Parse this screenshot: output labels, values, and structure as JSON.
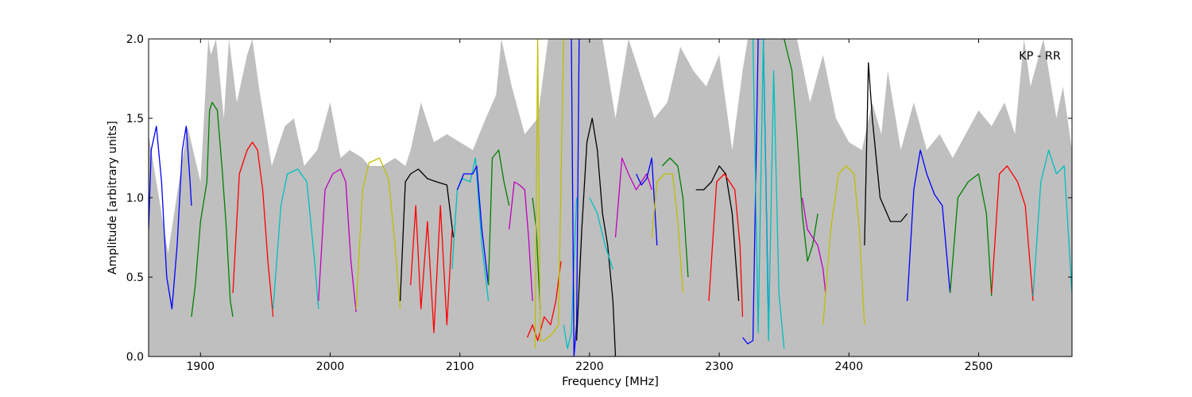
{
  "chart_data": {
    "type": "line",
    "title": "",
    "annotation": "KP - RR",
    "xlabel": "Frequency [MHz]",
    "ylabel": "Amplitude [arbitrary units]",
    "xlim": [
      1860,
      2572
    ],
    "ylim": [
      0.0,
      2.0
    ],
    "xticks": [
      1900,
      2000,
      2100,
      2200,
      2300,
      2400,
      2500
    ],
    "xtick_labels": [
      "1900",
      "2000",
      "2100",
      "2200",
      "2300",
      "2400",
      "2500"
    ],
    "yticks": [
      0.0,
      0.5,
      1.0,
      1.5,
      2.0
    ],
    "ytick_labels": [
      "0.0",
      "0.5",
      "1.0",
      "1.5",
      "2.0"
    ],
    "grid": false,
    "legend": "none",
    "colors": {
      "b": "#0000ff",
      "g": "#008000",
      "r": "#ff0000",
      "c": "#00bfbf",
      "m": "#bf00bf",
      "y": "#bfbf00",
      "k": "#000000",
      "envelope": "#bfbfbf"
    },
    "envelope": {
      "x": [
        1860,
        1875,
        1890,
        1900,
        1906,
        1908,
        1912,
        1918,
        1922,
        1928,
        1936,
        1940,
        1945,
        1955,
        1965,
        1972,
        1980,
        1990,
        2000,
        2008,
        2015,
        2025,
        2030,
        2040,
        2050,
        2058,
        2062,
        2070,
        2080,
        2090,
        2100,
        2110,
        2120,
        2128,
        2132,
        2140,
        2150,
        2160,
        2168,
        2175,
        2182,
        2190,
        2200,
        2210,
        2220,
        2230,
        2240,
        2250,
        2260,
        2270,
        2280,
        2290,
        2300,
        2310,
        2318,
        2322,
        2330,
        2340,
        2350,
        2360,
        2370,
        2380,
        2390,
        2400,
        2410,
        2418,
        2425,
        2430,
        2440,
        2450,
        2460,
        2470,
        2480,
        2490,
        2500,
        2510,
        2520,
        2528,
        2535,
        2540,
        2550,
        2560,
        2565,
        2572
      ],
      "y": [
        1.4,
        0.65,
        1.45,
        1.1,
        2.0,
        1.9,
        2.0,
        1.5,
        2.0,
        1.6,
        1.9,
        2.0,
        1.7,
        1.2,
        1.45,
        1.5,
        1.2,
        1.3,
        1.6,
        1.25,
        1.3,
        1.25,
        1.2,
        1.2,
        1.25,
        1.2,
        1.3,
        1.6,
        1.35,
        1.4,
        1.35,
        1.3,
        1.5,
        1.65,
        2.0,
        1.7,
        1.4,
        1.5,
        2.0,
        2.0,
        2.0,
        2.0,
        2.0,
        2.0,
        1.5,
        2.0,
        1.75,
        1.5,
        1.6,
        1.95,
        1.8,
        1.7,
        1.9,
        1.3,
        1.8,
        2.0,
        2.0,
        2.0,
        2.0,
        2.0,
        1.6,
        1.9,
        1.5,
        1.35,
        1.3,
        1.6,
        1.4,
        1.8,
        1.3,
        1.6,
        1.3,
        1.4,
        1.25,
        1.4,
        1.55,
        1.45,
        1.6,
        1.4,
        2.0,
        1.7,
        2.0,
        1.5,
        1.7,
        1.3
      ]
    },
    "series": [
      {
        "color": "b",
        "x": [
          1860,
          1862,
          1866,
          1870,
          1874,
          1878,
          1882,
          1886,
          1889,
          1892,
          1893
        ],
        "y": [
          0.8,
          1.3,
          1.45,
          1.1,
          0.5,
          0.3,
          0.7,
          1.3,
          1.45,
          1.1,
          0.95
        ]
      },
      {
        "color": "g",
        "x": [
          1893,
          1896,
          1900,
          1905,
          1907,
          1909,
          1913,
          1917,
          1920,
          1923,
          1925
        ],
        "y": [
          0.25,
          0.45,
          0.85,
          1.1,
          1.55,
          1.6,
          1.55,
          1.15,
          0.8,
          0.35,
          0.25
        ]
      },
      {
        "color": "r",
        "x": [
          1925,
          1930,
          1936,
          1940,
          1944,
          1948,
          1952,
          1956
        ],
        "y": [
          0.4,
          1.15,
          1.3,
          1.35,
          1.3,
          1.05,
          0.6,
          0.25
        ]
      },
      {
        "color": "c",
        "x": [
          1956,
          1962,
          1967,
          1975,
          1982,
          1988,
          1991
        ],
        "y": [
          0.3,
          0.95,
          1.15,
          1.18,
          1.1,
          0.6,
          0.3
        ]
      },
      {
        "color": "m",
        "x": [
          1991,
          1996,
          2002,
          2008,
          2012,
          2016,
          2020
        ],
        "y": [
          0.35,
          1.05,
          1.15,
          1.18,
          1.1,
          0.6,
          0.28
        ]
      },
      {
        "color": "y",
        "x": [
          2020,
          2025,
          2030,
          2038,
          2045,
          2050,
          2054
        ],
        "y": [
          0.3,
          1.05,
          1.22,
          1.25,
          1.12,
          0.7,
          0.3
        ]
      },
      {
        "color": "k",
        "x": [
          2054,
          2058,
          2062,
          2068,
          2075,
          2082,
          2090,
          2095
        ],
        "y": [
          0.35,
          1.1,
          1.15,
          1.18,
          1.12,
          1.1,
          1.08,
          0.75
        ]
      },
      {
        "color": "r",
        "x": [
          2062,
          2066,
          2070,
          2075,
          2080,
          2085,
          2090,
          2094
        ],
        "y": [
          0.45,
          0.95,
          0.3,
          0.85,
          0.15,
          0.95,
          0.2,
          0.8
        ]
      },
      {
        "color": "c",
        "x": [
          2094,
          2098,
          2102,
          2108,
          2112,
          2117,
          2122
        ],
        "y": [
          0.55,
          1.05,
          1.12,
          1.1,
          1.25,
          0.7,
          0.35
        ]
      },
      {
        "color": "b",
        "x": [
          2098,
          2103,
          2110,
          2113,
          2117,
          2122
        ],
        "y": [
          1.05,
          1.15,
          1.15,
          1.2,
          0.8,
          0.45
        ]
      },
      {
        "color": "g",
        "x": [
          2122,
          2125,
          2130,
          2134,
          2138
        ],
        "y": [
          0.45,
          1.25,
          1.3,
          1.1,
          0.95
        ]
      },
      {
        "color": "m",
        "x": [
          2138,
          2142,
          2146,
          2150,
          2153,
          2156
        ],
        "y": [
          0.8,
          1.1,
          1.08,
          1.05,
          0.75,
          0.35
        ]
      },
      {
        "color": "g",
        "x": [
          2156,
          2159,
          2161,
          2162
        ],
        "y": [
          1.0,
          0.8,
          0.45,
          0.3
        ]
      },
      {
        "color": "r",
        "x": [
          2152,
          2156,
          2160,
          2165,
          2170,
          2174,
          2178
        ],
        "y": [
          0.12,
          0.2,
          0.1,
          0.25,
          0.2,
          0.35,
          0.6
        ]
      },
      {
        "color": "y",
        "x": [
          2158,
          2160,
          2162,
          2165,
          2168,
          2172,
          2176,
          2180
        ],
        "y": [
          0.05,
          2.0,
          0.1,
          0.1,
          0.12,
          0.15,
          0.2,
          2.0
        ]
      },
      {
        "color": "c",
        "x": [
          2180,
          2183,
          2186,
          2188,
          2190
        ],
        "y": [
          0.2,
          0.05,
          0.15,
          0.6,
          1.0
        ]
      },
      {
        "color": "b",
        "x": [
          2186,
          2188,
          2190,
          2192
        ],
        "y": [
          2.0,
          0.0,
          0.2,
          2.0
        ]
      },
      {
        "color": "k",
        "x": [
          2190,
          2194,
          2198,
          2202,
          2206,
          2210,
          2214,
          2218,
          2220
        ],
        "y": [
          0.1,
          0.8,
          1.35,
          1.5,
          1.3,
          0.9,
          0.7,
          0.35,
          0.0
        ]
      },
      {
        "color": "c",
        "x": [
          2200,
          2206,
          2212,
          2218
        ],
        "y": [
          1.0,
          0.9,
          0.7,
          0.55
        ]
      },
      {
        "color": "m",
        "x": [
          2220,
          2225,
          2230,
          2236,
          2240,
          2244,
          2248
        ],
        "y": [
          0.75,
          1.25,
          1.15,
          1.05,
          1.1,
          1.15,
          1.05
        ]
      },
      {
        "color": "b",
        "x": [
          2236,
          2240,
          2244,
          2248,
          2252
        ],
        "y": [
          1.15,
          1.08,
          1.12,
          1.25,
          0.7
        ]
      },
      {
        "color": "y",
        "x": [
          2248,
          2252,
          2258,
          2264,
          2268,
          2272
        ],
        "y": [
          0.75,
          1.1,
          1.15,
          1.15,
          0.85,
          0.4
        ]
      },
      {
        "color": "g",
        "x": [
          2256,
          2262,
          2268,
          2272,
          2276
        ],
        "y": [
          1.2,
          1.25,
          1.2,
          1.0,
          0.5
        ]
      },
      {
        "color": "k",
        "x": [
          2282,
          2288,
          2294,
          2300,
          2305,
          2310,
          2315
        ],
        "y": [
          1.05,
          1.05,
          1.1,
          1.2,
          1.15,
          0.9,
          0.35
        ]
      },
      {
        "color": "r",
        "x": [
          2292,
          2298,
          2304,
          2308,
          2312,
          2316,
          2318
        ],
        "y": [
          0.35,
          1.1,
          1.15,
          1.1,
          1.05,
          0.7,
          0.25
        ]
      },
      {
        "color": "b",
        "x": [
          2318,
          2322,
          2326,
          2330,
          2334,
          2338
        ],
        "y": [
          0.12,
          0.08,
          0.1,
          2.0,
          2.0,
          0.2
        ]
      },
      {
        "color": "c",
        "x": [
          2326,
          2330,
          2334,
          2338,
          2342,
          2346,
          2350
        ],
        "y": [
          2.0,
          0.15,
          2.0,
          0.1,
          1.8,
          0.4,
          0.05
        ]
      },
      {
        "color": "g",
        "x": [
          2350,
          2356,
          2360,
          2364,
          2368,
          2372,
          2376
        ],
        "y": [
          2.0,
          1.8,
          1.4,
          0.9,
          0.6,
          0.7,
          0.9
        ]
      },
      {
        "color": "m",
        "x": [
          2364,
          2368,
          2372,
          2376,
          2380,
          2382
        ],
        "y": [
          1.0,
          0.8,
          0.75,
          0.7,
          0.55,
          0.4
        ]
      },
      {
        "color": "y",
        "x": [
          2380,
          2386,
          2392,
          2398,
          2404,
          2408,
          2412
        ],
        "y": [
          0.2,
          0.8,
          1.15,
          1.2,
          1.15,
          0.8,
          0.2
        ]
      },
      {
        "color": "k",
        "x": [
          2412,
          2415,
          2418,
          2424,
          2432,
          2440,
          2445
        ],
        "y": [
          0.7,
          1.85,
          1.5,
          1.0,
          0.85,
          0.85,
          0.9
        ]
      },
      {
        "color": "b",
        "x": [
          2445,
          2450,
          2455,
          2460,
          2466,
          2472,
          2478
        ],
        "y": [
          0.35,
          1.05,
          1.3,
          1.15,
          1.02,
          0.95,
          0.4
        ]
      },
      {
        "color": "g",
        "x": [
          2478,
          2484,
          2492,
          2500,
          2506,
          2510
        ],
        "y": [
          0.4,
          1.0,
          1.1,
          1.15,
          0.9,
          0.38
        ]
      },
      {
        "color": "r",
        "x": [
          2510,
          2516,
          2522,
          2530,
          2536,
          2542
        ],
        "y": [
          0.4,
          1.15,
          1.2,
          1.1,
          0.95,
          0.35
        ]
      },
      {
        "color": "c",
        "x": [
          2542,
          2548,
          2554,
          2560,
          2566,
          2572
        ],
        "y": [
          0.38,
          1.1,
          1.3,
          1.15,
          1.2,
          0.4
        ]
      }
    ]
  }
}
